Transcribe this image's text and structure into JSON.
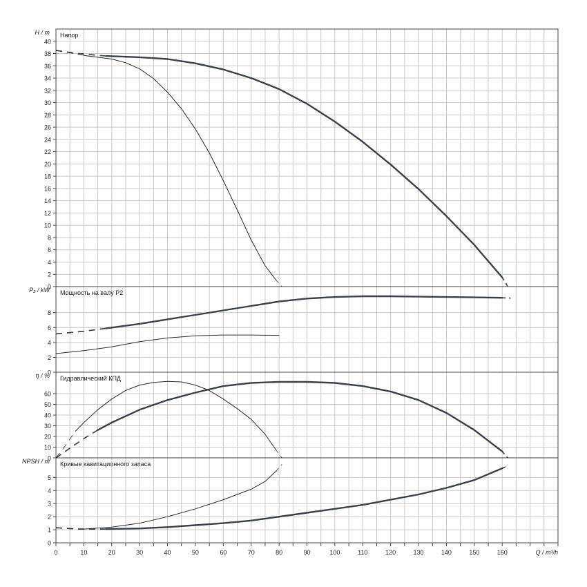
{
  "chart_data": {
    "type": "line",
    "x_axis": {
      "label": "Q / m³/h",
      "min": 0,
      "max": 180,
      "ticks": [
        0,
        10,
        20,
        30,
        40,
        50,
        60,
        70,
        80,
        90,
        100,
        110,
        120,
        130,
        140,
        150,
        160
      ],
      "tick_labels": [
        "0",
        "10",
        "20",
        "30",
        "40",
        "50",
        "60",
        "70",
        "80",
        "90",
        "100",
        "110",
        "120",
        "130",
        "140",
        "150",
        "160"
      ],
      "grid": true
    },
    "panels": [
      {
        "id": "head",
        "title": "Напор",
        "ylabel": "H / m",
        "ylim": [
          0,
          42
        ],
        "yticks": [
          0,
          2,
          4,
          6,
          8,
          10,
          12,
          14,
          16,
          18,
          20,
          22,
          24,
          26,
          28,
          30,
          32,
          34,
          36,
          38,
          40
        ],
        "ytick_labels": [
          "0",
          "2",
          "4",
          "6",
          "8",
          "10",
          "12",
          "14",
          "16",
          "18",
          "20",
          "22",
          "24",
          "26",
          "28",
          "30",
          "32",
          "34",
          "36",
          "38",
          "40"
        ],
        "series": [
          {
            "width": "thick",
            "solid": [
              [
                18,
                37.6
              ],
              [
                30,
                37.4
              ],
              [
                40,
                37.1
              ],
              [
                50,
                36.4
              ],
              [
                60,
                35.4
              ],
              [
                70,
                34.0
              ],
              [
                80,
                32.2
              ],
              [
                90,
                29.8
              ],
              [
                100,
                26.9
              ],
              [
                110,
                23.6
              ],
              [
                120,
                19.9
              ],
              [
                130,
                15.9
              ],
              [
                140,
                11.5
              ],
              [
                150,
                6.8
              ],
              [
                160,
                1.5
              ]
            ],
            "dashed_start": [
              [
                0,
                38.5
              ],
              [
                8,
                38.0
              ],
              [
                18,
                37.6
              ]
            ],
            "dashed_end": [
              [
                160,
                1.5
              ],
              [
                162,
                0
              ]
            ]
          },
          {
            "width": "thin",
            "solid": [
              [
                10,
                37.7
              ],
              [
                20,
                37.1
              ],
              [
                25,
                36.5
              ],
              [
                30,
                35.5
              ],
              [
                35,
                33.9
              ],
              [
                40,
                31.7
              ],
              [
                45,
                29.0
              ],
              [
                50,
                25.7
              ],
              [
                55,
                21.8
              ],
              [
                60,
                17.3
              ],
              [
                65,
                12.5
              ],
              [
                70,
                7.6
              ],
              [
                75,
                3.4
              ],
              [
                79,
                1.0
              ]
            ],
            "dashed_start": [
              [
                0,
                38.5
              ],
              [
                5,
                38.1
              ],
              [
                10,
                37.7
              ]
            ],
            "dashed_end": [
              [
                79,
                1.0
              ],
              [
                81,
                0
              ]
            ]
          }
        ]
      },
      {
        "id": "power",
        "title": "Мощность на валу P2",
        "ylabel": "P₂ / kW",
        "ylim": [
          0,
          11.5
        ],
        "yticks": [
          0,
          2,
          4,
          6,
          8
        ],
        "ytick_labels": [
          "0",
          "2",
          "4",
          "6",
          "8"
        ],
        "series": [
          {
            "width": "thick",
            "solid": [
              [
                18,
                5.9
              ],
              [
                30,
                6.5
              ],
              [
                40,
                7.1
              ],
              [
                50,
                7.7
              ],
              [
                60,
                8.3
              ],
              [
                70,
                8.9
              ],
              [
                80,
                9.5
              ],
              [
                90,
                9.9
              ],
              [
                100,
                10.1
              ],
              [
                110,
                10.2
              ],
              [
                120,
                10.2
              ],
              [
                130,
                10.15
              ],
              [
                140,
                10.1
              ],
              [
                150,
                10.05
              ],
              [
                160,
                10.0
              ]
            ],
            "dashed_start": [
              [
                0,
                5.15
              ],
              [
                10,
                5.5
              ],
              [
                18,
                5.9
              ]
            ],
            "dashed_end": [
              [
                160,
                10.0
              ],
              [
                163,
                9.95
              ]
            ]
          },
          {
            "width": "thin",
            "solid": [
              [
                0,
                2.5
              ],
              [
                10,
                2.9
              ],
              [
                20,
                3.4
              ],
              [
                30,
                4.1
              ],
              [
                40,
                4.6
              ],
              [
                50,
                4.9
              ],
              [
                60,
                5.0
              ],
              [
                70,
                5.0
              ],
              [
                80,
                4.95
              ]
            ],
            "dashed_start": [],
            "dashed_end": []
          }
        ]
      },
      {
        "id": "efficiency",
        "title": "Гидравлический КПД",
        "ylabel": "η / %",
        "ylim": [
          0,
          80
        ],
        "yticks": [
          0,
          10,
          20,
          30,
          40,
          50,
          60
        ],
        "ytick_labels": [
          "0",
          "10",
          "20",
          "30",
          "40",
          "50",
          "60"
        ],
        "series": [
          {
            "width": "thick",
            "solid": [
              [
                15,
                26
              ],
              [
                20,
                33
              ],
              [
                30,
                45
              ],
              [
                40,
                54
              ],
              [
                50,
                61
              ],
              [
                60,
                67
              ],
              [
                70,
                70
              ],
              [
                80,
                71
              ],
              [
                90,
                71
              ],
              [
                100,
                70
              ],
              [
                110,
                67
              ],
              [
                120,
                62
              ],
              [
                130,
                54
              ],
              [
                140,
                42
              ],
              [
                150,
                26
              ],
              [
                160,
                6
              ]
            ],
            "dashed_start": [
              [
                0,
                0
              ],
              [
                5,
                9
              ],
              [
                10,
                18
              ],
              [
                15,
                26
              ]
            ],
            "dashed_end": [
              [
                160,
                6
              ],
              [
                162,
                0
              ]
            ]
          },
          {
            "width": "thin",
            "solid": [
              [
                7,
                25
              ],
              [
                10,
                33
              ],
              [
                15,
                45
              ],
              [
                20,
                55
              ],
              [
                25,
                63
              ],
              [
                30,
                68
              ],
              [
                35,
                70.5
              ],
              [
                40,
                71.5
              ],
              [
                45,
                71
              ],
              [
                50,
                68
              ],
              [
                55,
                63
              ],
              [
                60,
                55
              ],
              [
                65,
                46
              ],
              [
                70,
                36
              ],
              [
                75,
                22
              ],
              [
                79,
                7
              ]
            ],
            "dashed_start": [
              [
                0,
                0
              ],
              [
                3,
                10
              ],
              [
                7,
                25
              ]
            ],
            "dashed_end": [
              [
                79,
                7
              ],
              [
                81,
                0
              ]
            ]
          }
        ]
      },
      {
        "id": "npsh",
        "title": "Кривые кавитационного запаса",
        "ylabel": "NPSH / m",
        "ylim": [
          0,
          6.5
        ],
        "yticks": [
          0,
          1,
          2,
          3,
          4,
          5
        ],
        "ytick_labels": [
          "0",
          "1",
          "2",
          "3",
          "4",
          "5"
        ],
        "series": [
          {
            "width": "thick",
            "solid": [
              [
                18,
                1.05
              ],
              [
                30,
                1.1
              ],
              [
                40,
                1.2
              ],
              [
                50,
                1.35
              ],
              [
                60,
                1.5
              ],
              [
                70,
                1.7
              ],
              [
                80,
                2.0
              ],
              [
                90,
                2.3
              ],
              [
                100,
                2.6
              ],
              [
                110,
                2.9
              ],
              [
                120,
                3.3
              ],
              [
                130,
                3.7
              ],
              [
                140,
                4.2
              ],
              [
                150,
                4.8
              ],
              [
                160,
                5.7
              ]
            ],
            "dashed_start": [
              [
                0,
                1.15
              ],
              [
                8,
                1.05
              ],
              [
                18,
                1.05
              ]
            ],
            "dashed_end": [
              [
                160,
                5.7
              ],
              [
                162,
                5.9
              ]
            ]
          },
          {
            "width": "thin",
            "solid": [
              [
                10,
                1.05
              ],
              [
                20,
                1.2
              ],
              [
                30,
                1.5
              ],
              [
                40,
                2.0
              ],
              [
                50,
                2.6
              ],
              [
                60,
                3.3
              ],
              [
                70,
                4.1
              ],
              [
                75,
                4.7
              ],
              [
                79,
                5.5
              ]
            ],
            "dashed_start": [
              [
                0,
                1.15
              ],
              [
                10,
                1.05
              ]
            ],
            "dashed_end": [
              [
                79,
                5.5
              ],
              [
                81,
                6.0
              ]
            ]
          }
        ]
      }
    ]
  }
}
